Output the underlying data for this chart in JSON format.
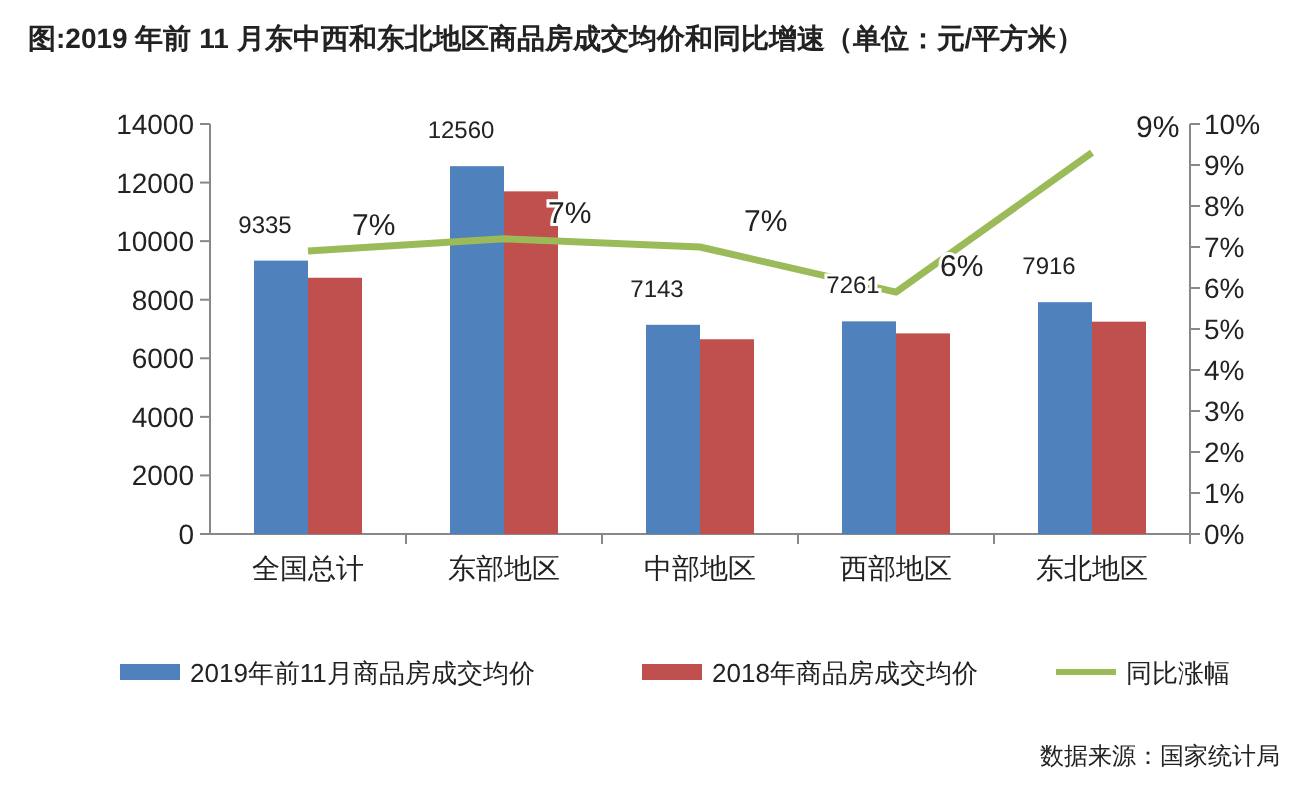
{
  "chart_data": {
    "type": "bar",
    "title": "图:2019 年前 11 月东中西和东北地区商品房成交均价和同比增速（单位：元/平方米）",
    "categories": [
      "全国总计",
      "东部地区",
      "中部地区",
      "西部地区",
      "东北地区"
    ],
    "series": [
      {
        "name": "2019年前11月商品房成交均价",
        "color": "#4f81bd",
        "values": [
          9335,
          12560,
          7143,
          7261,
          7916
        ],
        "value_labels": [
          "9335",
          "12560",
          "7143",
          "7261",
          "7916"
        ]
      },
      {
        "name": "2018年商品房成交均价",
        "color": "#c0504d",
        "values": [
          8750,
          11700,
          6650,
          6850,
          7250
        ]
      },
      {
        "name": "同比涨幅",
        "type": "line",
        "axis": "y2",
        "color": "#9bbb59",
        "values": [
          6.9,
          7.2,
          7.0,
          5.9,
          9.3
        ],
        "value_labels": [
          "7%",
          "7%",
          "7%",
          "6%",
          "9%"
        ]
      }
    ],
    "ylim": [
      0,
      14000
    ],
    "yticks": [
      0,
      2000,
      4000,
      6000,
      8000,
      10000,
      12000,
      14000
    ],
    "y2lim": [
      0,
      10
    ],
    "y2ticks": [
      {
        "value": 0,
        "label": "0%"
      },
      {
        "value": 1,
        "label": "1%"
      },
      {
        "value": 2,
        "label": "2%"
      },
      {
        "value": 3,
        "label": "3%"
      },
      {
        "value": 4,
        "label": "4%"
      },
      {
        "value": 5,
        "label": "5%"
      },
      {
        "value": 6,
        "label": "6%"
      },
      {
        "value": 7,
        "label": "7%"
      },
      {
        "value": 8,
        "label": "8%"
      },
      {
        "value": 9,
        "label": "9%"
      },
      {
        "value": 10,
        "label": "10%"
      }
    ],
    "grid": false,
    "legend": "bottom",
    "marker": "none",
    "line_style": "solid",
    "annotations": [
      "数据来源：国家统计局"
    ]
  }
}
